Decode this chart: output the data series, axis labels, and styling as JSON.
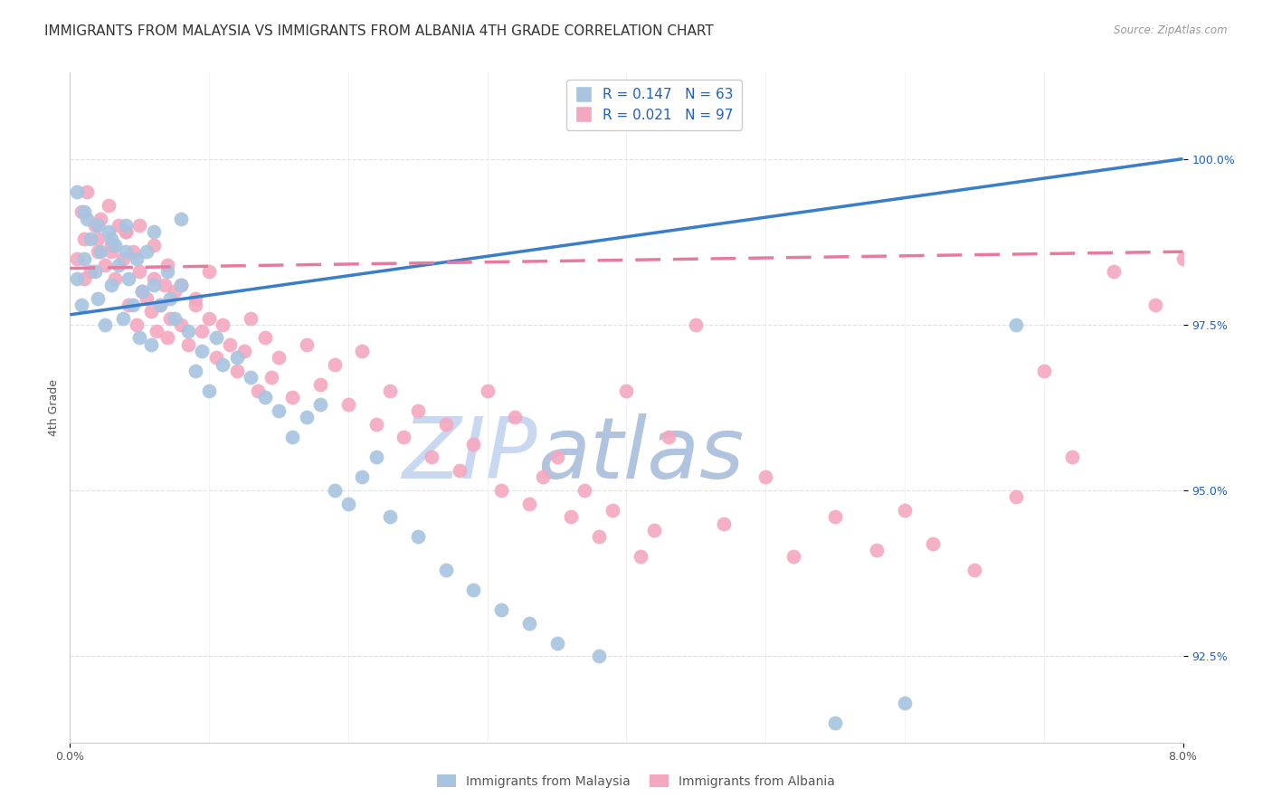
{
  "title": "IMMIGRANTS FROM MALAYSIA VS IMMIGRANTS FROM ALBANIA 4TH GRADE CORRELATION CHART",
  "source": "Source: ZipAtlas.com",
  "ylabel": "4th Grade",
  "yticks": [
    92.5,
    95.0,
    97.5,
    100.0
  ],
  "ytick_labels": [
    "92.5%",
    "95.0%",
    "97.5%",
    "100.0%"
  ],
  "xmin": 0.0,
  "xmax": 0.08,
  "ymin": 91.2,
  "ymax": 101.3,
  "legend_malaysia": "Immigrants from Malaysia",
  "legend_albania": "Immigrants from Albania",
  "R_malaysia": 0.147,
  "N_malaysia": 63,
  "R_albania": 0.021,
  "N_albania": 97,
  "malaysia_color": "#a8c4e0",
  "albania_color": "#f4a8c0",
  "malaysia_line_color": "#3a7dc9",
  "albania_line_color": "#e87a9f",
  "watermark_zip_color": "#c8d8f0",
  "watermark_atlas_color": "#b8c8e8",
  "background_color": "#ffffff",
  "grid_color": "#e0e0e0",
  "title_fontsize": 11,
  "axis_label_fontsize": 9,
  "tick_fontsize": 9,
  "legend_fontsize": 11,
  "malaysia_line_y0": 97.65,
  "malaysia_line_y1": 100.0,
  "albania_line_y0": 98.35,
  "albania_line_y1": 98.6,
  "malaysia_x": [
    0.0005,
    0.0008,
    0.001,
    0.0012,
    0.0015,
    0.0018,
    0.002,
    0.0022,
    0.0025,
    0.0028,
    0.003,
    0.0032,
    0.0035,
    0.0038,
    0.004,
    0.0042,
    0.0045,
    0.0048,
    0.005,
    0.0052,
    0.0055,
    0.0058,
    0.006,
    0.0065,
    0.007,
    0.0072,
    0.0075,
    0.008,
    0.0085,
    0.009,
    0.0095,
    0.01,
    0.0105,
    0.011,
    0.012,
    0.013,
    0.014,
    0.015,
    0.016,
    0.017,
    0.018,
    0.019,
    0.02,
    0.021,
    0.022,
    0.023,
    0.025,
    0.027,
    0.029,
    0.031,
    0.033,
    0.035,
    0.038,
    0.055,
    0.06,
    0.068,
    0.0005,
    0.001,
    0.002,
    0.003,
    0.004,
    0.006,
    0.008
  ],
  "malaysia_y": [
    98.2,
    97.8,
    98.5,
    99.1,
    98.8,
    98.3,
    97.9,
    98.6,
    97.5,
    98.9,
    98.1,
    98.7,
    98.4,
    97.6,
    99.0,
    98.2,
    97.8,
    98.5,
    97.3,
    98.0,
    98.6,
    97.2,
    98.1,
    97.8,
    98.3,
    97.9,
    97.6,
    98.1,
    97.4,
    96.8,
    97.1,
    96.5,
    97.3,
    96.9,
    97.0,
    96.7,
    96.4,
    96.2,
    95.8,
    96.1,
    96.3,
    95.0,
    94.8,
    95.2,
    95.5,
    94.6,
    94.3,
    93.8,
    93.5,
    93.2,
    93.0,
    92.7,
    92.5,
    91.5,
    91.8,
    97.5,
    99.5,
    99.2,
    99.0,
    98.8,
    98.6,
    98.9,
    99.1
  ],
  "albania_x": [
    0.0005,
    0.0008,
    0.001,
    0.0012,
    0.0015,
    0.0018,
    0.002,
    0.0022,
    0.0025,
    0.0028,
    0.003,
    0.0032,
    0.0035,
    0.0038,
    0.004,
    0.0042,
    0.0045,
    0.0048,
    0.005,
    0.0052,
    0.0055,
    0.0058,
    0.006,
    0.0062,
    0.0065,
    0.0068,
    0.007,
    0.0072,
    0.0075,
    0.008,
    0.0085,
    0.009,
    0.0095,
    0.01,
    0.0105,
    0.011,
    0.0115,
    0.012,
    0.0125,
    0.013,
    0.0135,
    0.014,
    0.0145,
    0.015,
    0.016,
    0.017,
    0.018,
    0.019,
    0.02,
    0.021,
    0.022,
    0.023,
    0.024,
    0.025,
    0.026,
    0.027,
    0.028,
    0.029,
    0.03,
    0.031,
    0.032,
    0.033,
    0.034,
    0.035,
    0.036,
    0.037,
    0.038,
    0.039,
    0.04,
    0.041,
    0.042,
    0.043,
    0.045,
    0.047,
    0.05,
    0.052,
    0.055,
    0.058,
    0.06,
    0.062,
    0.065,
    0.068,
    0.07,
    0.072,
    0.075,
    0.078,
    0.08,
    0.001,
    0.002,
    0.003,
    0.004,
    0.005,
    0.006,
    0.007,
    0.008,
    0.009,
    0.01
  ],
  "albania_y": [
    98.5,
    99.2,
    98.8,
    99.5,
    98.3,
    99.0,
    98.6,
    99.1,
    98.4,
    99.3,
    98.7,
    98.2,
    99.0,
    98.5,
    98.9,
    97.8,
    98.6,
    97.5,
    98.3,
    98.0,
    97.9,
    97.7,
    98.2,
    97.4,
    97.8,
    98.1,
    97.3,
    97.6,
    98.0,
    97.5,
    97.2,
    97.8,
    97.4,
    98.3,
    97.0,
    97.5,
    97.2,
    96.8,
    97.1,
    97.6,
    96.5,
    97.3,
    96.7,
    97.0,
    96.4,
    97.2,
    96.6,
    96.9,
    96.3,
    97.1,
    96.0,
    96.5,
    95.8,
    96.2,
    95.5,
    96.0,
    95.3,
    95.7,
    96.5,
    95.0,
    96.1,
    94.8,
    95.2,
    95.5,
    94.6,
    95.0,
    94.3,
    94.7,
    96.5,
    94.0,
    94.4,
    95.8,
    97.5,
    94.5,
    95.2,
    94.0,
    94.6,
    94.1,
    94.7,
    94.2,
    93.8,
    94.9,
    96.8,
    95.5,
    98.3,
    97.8,
    98.5,
    98.2,
    98.8,
    98.6,
    98.9,
    99.0,
    98.7,
    98.4,
    98.1,
    97.9,
    97.6
  ]
}
